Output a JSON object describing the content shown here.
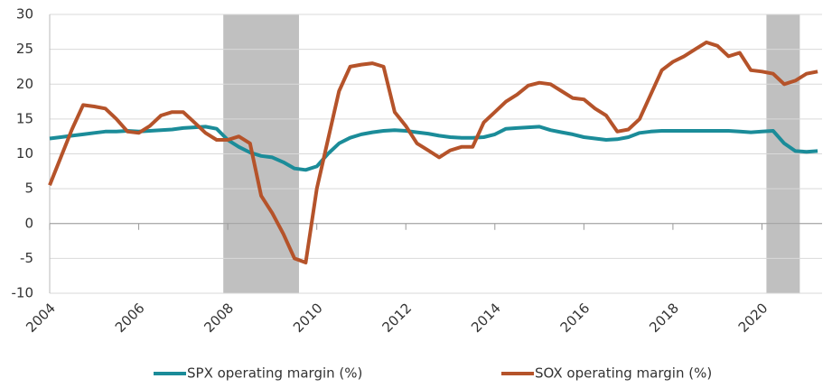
{
  "chart_data": {
    "type": "line",
    "x": [
      2004,
      2004.25,
      2004.5,
      2004.75,
      2005,
      2005.25,
      2005.5,
      2005.75,
      2006,
      2006.25,
      2006.5,
      2006.75,
      2007,
      2007.25,
      2007.5,
      2007.75,
      2008,
      2008.25,
      2008.5,
      2008.75,
      2009,
      2009.25,
      2009.5,
      2009.75,
      2010,
      2010.25,
      2010.5,
      2010.75,
      2011,
      2011.25,
      2011.5,
      2011.75,
      2012,
      2012.25,
      2012.5,
      2012.75,
      2013,
      2013.25,
      2013.5,
      2013.75,
      2014,
      2014.25,
      2014.5,
      2014.75,
      2015,
      2015.25,
      2015.5,
      2015.75,
      2016,
      2016.25,
      2016.5,
      2016.75,
      2017,
      2017.25,
      2017.5,
      2017.75,
      2018,
      2018.25,
      2018.5,
      2018.75,
      2019,
      2019.25,
      2019.5,
      2019.75,
      2020,
      2020.25,
      2020.5,
      2020.75,
      2021,
      2021.25
    ],
    "series": [
      {
        "name": "SPX operating margin (%)",
        "color": "#1b8c99",
        "values": [
          12.2,
          12.4,
          12.6,
          12.8,
          13.0,
          13.2,
          13.2,
          13.3,
          13.2,
          13.3,
          13.4,
          13.5,
          13.7,
          13.8,
          13.9,
          13.6,
          12.0,
          11.0,
          10.2,
          9.7,
          9.5,
          8.8,
          7.9,
          7.7,
          8.2,
          10.0,
          11.5,
          12.3,
          12.8,
          13.1,
          13.3,
          13.4,
          13.3,
          13.1,
          12.9,
          12.6,
          12.4,
          12.3,
          12.3,
          12.4,
          12.8,
          13.6,
          13.7,
          13.8,
          13.9,
          13.4,
          13.1,
          12.8,
          12.4,
          12.2,
          12.0,
          12.1,
          12.4,
          13.0,
          13.2,
          13.3,
          13.3,
          13.3,
          13.3,
          13.3,
          13.3,
          13.3,
          13.2,
          13.1,
          13.2,
          13.3,
          11.5,
          10.4,
          10.3,
          10.4
        ]
      },
      {
        "name": "SOX operating margin (%)",
        "color": "#b5532a",
        "values": [
          5.5,
          9.5,
          13.5,
          17,
          16.8,
          16.5,
          15,
          13.2,
          13,
          14,
          15.5,
          16,
          16,
          14.5,
          13,
          12,
          12,
          12.5,
          11.5,
          4,
          1.5,
          -1.5,
          -5,
          -5.6,
          5,
          12,
          19,
          22.5,
          22.8,
          23,
          22.5,
          16,
          14,
          11.5,
          10.5,
          9.5,
          10.5,
          11,
          11,
          14.5,
          16,
          17.5,
          18.5,
          19.8,
          20.2,
          20,
          19,
          18,
          17.8,
          16.5,
          15.5,
          13.2,
          13.5,
          15,
          18.5,
          22,
          23.2,
          24,
          25,
          26,
          25.5,
          24,
          24.5,
          22,
          21.8,
          21.5,
          20,
          20.5,
          21.5,
          21.8
        ]
      }
    ],
    "shaded_regions": [
      [
        2007.9,
        2009.6
      ],
      [
        2020.1,
        2020.85
      ]
    ],
    "shade_color": "#c0c0c0",
    "xlim": [
      2004,
      2021.35
    ],
    "xticks": [
      2004,
      2006,
      2008,
      2010,
      2012,
      2014,
      2016,
      2018,
      2020
    ],
    "ylim": [
      -10,
      30
    ],
    "yticks": [
      -10,
      -5,
      0,
      5,
      10,
      15,
      20,
      25,
      30
    ],
    "grid": true,
    "legend": "bottom"
  }
}
